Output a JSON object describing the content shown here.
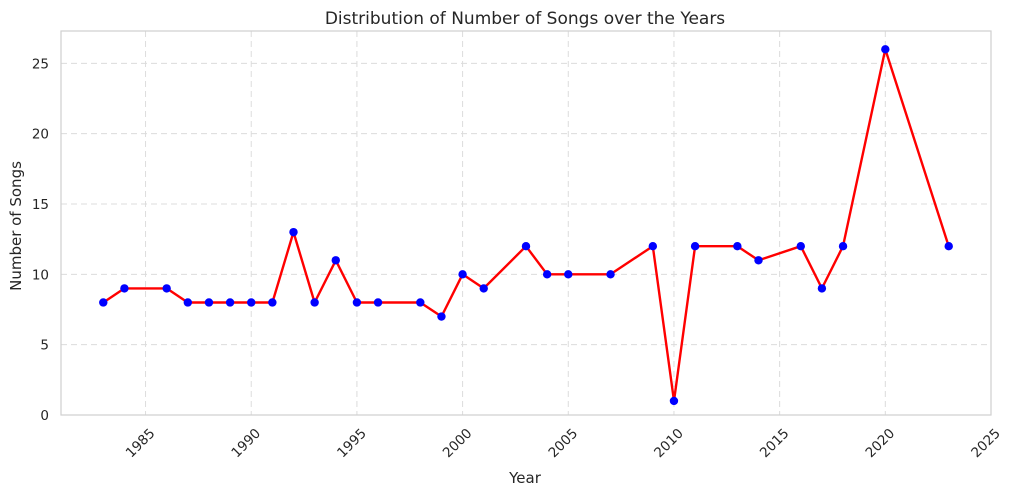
{
  "chart_data": {
    "type": "line",
    "title": "Distribution of Number of Songs over the Years",
    "xlabel": "Year",
    "ylabel": "Number of Songs",
    "xlim": [
      1981,
      2025
    ],
    "ylim": [
      0,
      27.3
    ],
    "xticks": [
      1985,
      1990,
      1995,
      2000,
      2005,
      2010,
      2015,
      2020,
      2025
    ],
    "yticks": [
      0,
      5,
      10,
      15,
      20,
      25
    ],
    "grid": true,
    "line_color": "#ff0000",
    "marker_color": "#0000ff",
    "x": [
      1983,
      1984,
      1986,
      1987,
      1988,
      1989,
      1990,
      1991,
      1992,
      1993,
      1994,
      1995,
      1996,
      1998,
      1999,
      2000,
      2001,
      2003,
      2004,
      2005,
      2007,
      2009,
      2010,
      2011,
      2013,
      2014,
      2016,
      2017,
      2018,
      2020,
      2023
    ],
    "y": [
      8,
      9,
      9,
      8,
      8,
      8,
      8,
      8,
      13,
      8,
      11,
      8,
      8,
      8,
      7,
      10,
      9,
      12,
      10,
      10,
      10,
      12,
      1,
      12,
      12,
      11,
      12,
      9,
      12,
      26,
      12
    ]
  }
}
